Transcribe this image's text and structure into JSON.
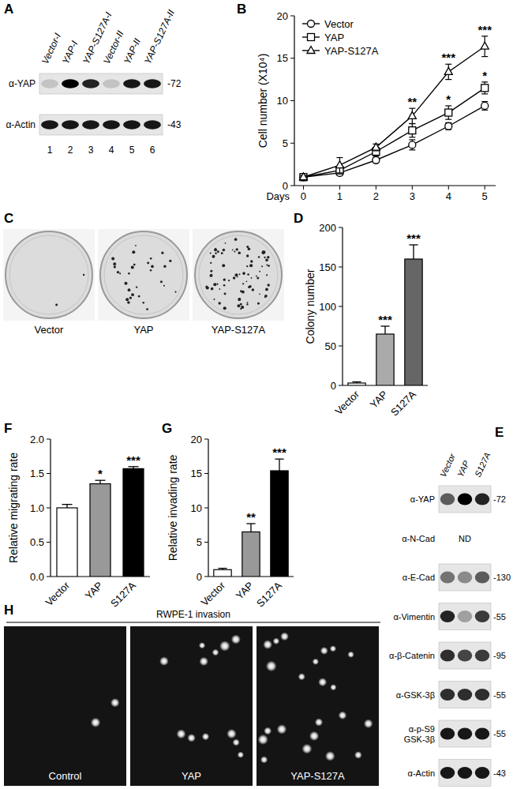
{
  "chart_data": [
    {
      "type": "line",
      "panel": "B",
      "x_label": "Days",
      "y_label": "Cell number (X10⁴)",
      "x": [
        0,
        1,
        2,
        3,
        4,
        5
      ],
      "xlim": [
        -0.25,
        5.3
      ],
      "xticks": [
        0,
        1,
        2,
        3,
        4,
        5
      ],
      "ylim": [
        0,
        20
      ],
      "yticks": [
        0,
        5,
        10,
        15,
        20
      ],
      "legend": "top-left",
      "series": [
        {
          "name": "Vector",
          "color": "#000000",
          "marker": "circle",
          "values": [
            1,
            1.5,
            3,
            4.8,
            7,
            9.4
          ],
          "errors": [
            0.2,
            0.3,
            0.3,
            0.6,
            0.4,
            0.5
          ],
          "significance": [
            null,
            null,
            null,
            null,
            null,
            null
          ]
        },
        {
          "name": "YAP",
          "color": "#000000",
          "marker": "square",
          "values": [
            1,
            1.8,
            4,
            6.5,
            8.6,
            11.5
          ],
          "errors": [
            0.2,
            0.4,
            0.5,
            0.8,
            0.8,
            0.7
          ],
          "significance": [
            null,
            null,
            null,
            null,
            "*",
            "*"
          ]
        },
        {
          "name": "YAP-S127A",
          "color": "#000000",
          "marker": "triangle",
          "values": [
            1,
            2.4,
            4.5,
            8.2,
            13.4,
            16.4
          ],
          "errors": [
            0.2,
            0.9,
            0.4,
            0.9,
            0.9,
            1.2
          ],
          "significance": [
            null,
            null,
            null,
            "**",
            "***",
            "***"
          ]
        }
      ]
    },
    {
      "type": "bar",
      "panel": "D",
      "y_label": "Colony number",
      "categories": [
        "Vector",
        "YAP",
        "S127A"
      ],
      "values": [
        3,
        65,
        160
      ],
      "errors": [
        1.5,
        10,
        18
      ],
      "significance": [
        null,
        "***",
        "***"
      ],
      "colors": [
        "#ffffff",
        "#aaaaaa",
        "#666666"
      ],
      "ylim": [
        0,
        200
      ],
      "yticks": [
        0,
        50,
        100,
        150,
        200
      ]
    },
    {
      "type": "bar",
      "panel": "F",
      "y_label": "Relative migrating rate",
      "categories": [
        "Vector",
        "YAP",
        "S127A"
      ],
      "values": [
        1.0,
        1.35,
        1.57
      ],
      "errors": [
        0.05,
        0.05,
        0.03
      ],
      "significance": [
        null,
        "*",
        "***"
      ],
      "colors": [
        "#ffffff",
        "#999999",
        "#000000"
      ],
      "ylim": [
        0,
        2
      ],
      "yticks": [
        {
          "value": 0,
          "label": "0.0"
        },
        {
          "value": 0.5,
          "label": "0.5"
        },
        {
          "value": 1,
          "label": "1.0"
        },
        {
          "value": 1.5,
          "label": "1.5"
        },
        {
          "value": 2,
          "label": "2.0"
        }
      ]
    },
    {
      "type": "bar",
      "panel": "G",
      "y_label": "Relative invading rate",
      "categories": [
        "Vector",
        "YAP",
        "S127A"
      ],
      "values": [
        1,
        6.5,
        15.4
      ],
      "errors": [
        0.2,
        1.2,
        1.7
      ],
      "significance": [
        null,
        "**",
        "***"
      ],
      "colors": [
        "#ffffff",
        "#999999",
        "#000000"
      ],
      "ylim": [
        0,
        20
      ],
      "yticks": [
        0,
        5,
        10,
        15,
        20
      ]
    }
  ],
  "blots": [
    {
      "panel": "A",
      "columns": [
        "Vector-I",
        "YAP-I",
        "YAP-S127A-I",
        "Vector-II",
        "YAP-II",
        "YAP-S127A-II"
      ],
      "lanes": [
        "1",
        "2",
        "3",
        "4",
        "5",
        "6"
      ],
      "rows": [
        {
          "label": "α-YAP",
          "mw": "-72",
          "bands": [
            0.15,
            1,
            0.85,
            0.15,
            0.9,
            0.9
          ]
        },
        {
          "label": "α-Actin",
          "mw": "-43",
          "bands": [
            0.9,
            0.9,
            0.9,
            0.9,
            0.9,
            0.9
          ]
        }
      ]
    },
    {
      "panel": "E",
      "columns": [
        "Vector",
        "YAP",
        "S127A"
      ],
      "rows": [
        {
          "label": "α-YAP",
          "mw": "-72",
          "bands": [
            0.6,
            1,
            0.85
          ]
        },
        {
          "label": "α-N-Cad",
          "note": "ND"
        },
        {
          "label": "α-E-Cad",
          "mw": "-130",
          "bands": [
            0.5,
            0.4,
            0.6
          ]
        },
        {
          "label": "α-Vimentin",
          "mw": "-55",
          "bands": [
            0.85,
            0.3,
            0.75
          ]
        },
        {
          "label": "α-β-Catenin",
          "mw": "-95",
          "bands": [
            0.8,
            0.7,
            0.75
          ]
        },
        {
          "label": "α-GSK-3β",
          "mw": "-55",
          "bands": [
            0.8,
            0.8,
            0.8
          ]
        },
        {
          "label": "α-p-S9 GSK-3β",
          "mw": "-55",
          "bands": [
            0.9,
            0.9,
            0.9
          ]
        },
        {
          "label": "α-Actin",
          "mw": "-43",
          "bands": [
            0.9,
            0.9,
            0.9
          ]
        }
      ]
    }
  ],
  "images": [
    {
      "panel": "C",
      "panels": [
        "Vector",
        "YAP",
        "YAP-S127A"
      ]
    },
    {
      "panel": "H",
      "title": "RWPE-1 invasion",
      "panels": [
        "Control",
        "YAP",
        "YAP-S127A"
      ]
    }
  ]
}
